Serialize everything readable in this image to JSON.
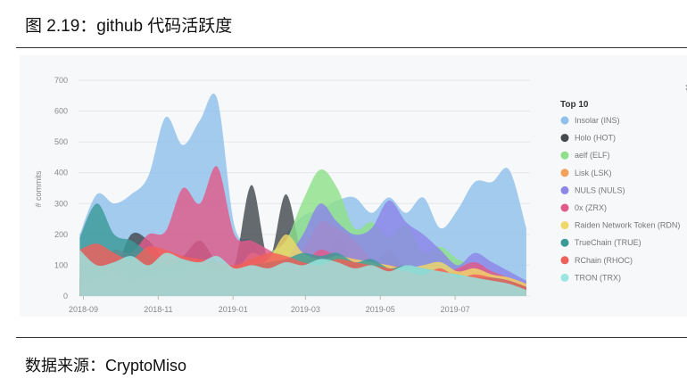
{
  "figure": {
    "title": "图 2.19：github 代码活跃度",
    "source": "数据来源：CryptoMiso"
  },
  "chart_data": {
    "type": "area",
    "title": "",
    "xlabel": "",
    "ylabel": "# commits",
    "ylim": [
      0,
      700
    ],
    "yticks": [
      0,
      100,
      200,
      300,
      400,
      500,
      600,
      700
    ],
    "xticks": [
      "2018-09",
      "2018-11",
      "2019-01",
      "2019-03",
      "2019-05",
      "2019-07"
    ],
    "x": [
      "2018-08-29",
      "2018-09-12",
      "2018-09-26",
      "2018-10-10",
      "2018-10-24",
      "2018-11-07",
      "2018-11-21",
      "2018-12-05",
      "2018-12-19",
      "2019-01-02",
      "2019-01-16",
      "2019-01-30",
      "2019-02-13",
      "2019-02-27",
      "2019-03-13",
      "2019-03-27",
      "2019-04-10",
      "2019-04-24",
      "2019-05-08",
      "2019-05-22",
      "2019-06-05",
      "2019-06-19",
      "2019-07-03",
      "2019-07-17",
      "2019-07-31",
      "2019-08-14",
      "2019-08-28"
    ],
    "legend": {
      "title": "Top 10",
      "position": "right"
    },
    "grid": true,
    "series": [
      {
        "name": "Insolar (INS)",
        "color": "#90c1ec",
        "values": [
          200,
          330,
          300,
          330,
          390,
          580,
          490,
          570,
          640,
          230,
          180,
          110,
          200,
          260,
          280,
          310,
          320,
          270,
          320,
          270,
          320,
          220,
          280,
          370,
          370,
          410,
          220
        ]
      },
      {
        "name": "Holo (HOT)",
        "color": "#444a50",
        "values": [
          60,
          70,
          80,
          200,
          180,
          120,
          130,
          180,
          110,
          100,
          360,
          120,
          330,
          120,
          90,
          190,
          120,
          100,
          150,
          90,
          80,
          90,
          80,
          70,
          70,
          60,
          40
        ]
      },
      {
        "name": "aelf (ELF)",
        "color": "#8fe08a",
        "values": [
          20,
          30,
          40,
          30,
          50,
          40,
          60,
          80,
          60,
          80,
          100,
          140,
          180,
          310,
          410,
          350,
          220,
          240,
          190,
          230,
          140,
          160,
          120,
          100,
          80,
          60,
          40
        ]
      },
      {
        "name": "Lisk (LSK)",
        "color": "#f2a15b",
        "values": [
          40,
          60,
          80,
          50,
          70,
          60,
          80,
          90,
          60,
          70,
          140,
          110,
          100,
          150,
          240,
          220,
          180,
          120,
          100,
          80,
          90,
          70,
          60,
          100,
          70,
          50,
          30
        ]
      },
      {
        "name": "NULS (NULS)",
        "color": "#8c86e8",
        "values": [
          30,
          40,
          50,
          40,
          60,
          50,
          70,
          60,
          50,
          60,
          80,
          90,
          120,
          200,
          300,
          240,
          200,
          220,
          310,
          240,
          200,
          150,
          100,
          140,
          110,
          80,
          50
        ]
      },
      {
        "name": "0x (ZRX)",
        "color": "#e05a8a",
        "values": [
          90,
          100,
          150,
          140,
          200,
          210,
          350,
          300,
          420,
          200,
          180,
          150,
          120,
          110,
          150,
          130,
          120,
          100,
          100,
          90,
          80,
          70,
          90,
          110,
          80,
          60,
          40
        ]
      },
      {
        "name": "Raiden Network Token (RDN)",
        "color": "#f0d868",
        "values": [
          30,
          40,
          50,
          40,
          60,
          50,
          60,
          70,
          80,
          90,
          100,
          120,
          200,
          140,
          120,
          130,
          120,
          110,
          100,
          90,
          100,
          110,
          80,
          90,
          70,
          60,
          40
        ]
      },
      {
        "name": "TrueChain (TRUE)",
        "color": "#3a9a98",
        "values": [
          190,
          300,
          200,
          180,
          140,
          100,
          120,
          100,
          90,
          80,
          100,
          110,
          120,
          140,
          130,
          140,
          110,
          120,
          90,
          100,
          90,
          80,
          70,
          60,
          60,
          50,
          30
        ]
      },
      {
        "name": "RChain (RHOC)",
        "color": "#f0605a",
        "values": [
          150,
          170,
          140,
          120,
          160,
          150,
          130,
          120,
          110,
          100,
          120,
          140,
          130,
          110,
          100,
          120,
          110,
          100,
          90,
          80,
          70,
          90,
          60,
          70,
          60,
          50,
          30
        ]
      },
      {
        "name": "TRON (TRX)",
        "color": "#9ae6e2",
        "values": [
          150,
          100,
          110,
          130,
          100,
          140,
          120,
          110,
          130,
          90,
          100,
          90,
          110,
          100,
          120,
          110,
          90,
          100,
          80,
          100,
          90,
          80,
          70,
          60,
          50,
          40,
          20
        ]
      }
    ]
  }
}
